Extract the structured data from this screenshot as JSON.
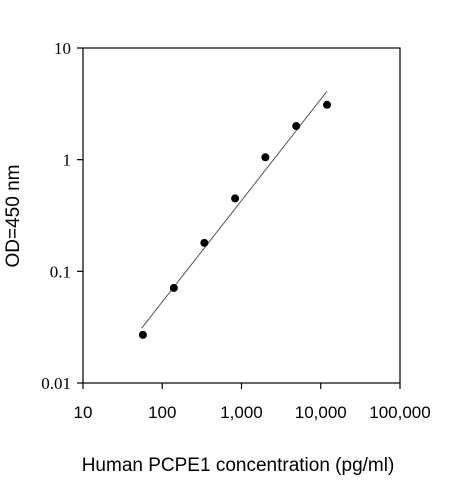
{
  "chart_data": {
    "type": "scatter",
    "title": "",
    "xlabel": "Human PCPE1 concentration (pg/ml)",
    "ylabel": "OD=450 nm",
    "xscale": "log",
    "yscale": "log",
    "xlim": [
      10,
      100000
    ],
    "ylim": [
      0.01,
      10
    ],
    "grid": false,
    "legend": "none",
    "x_ticks": [
      10,
      100,
      1000,
      10000,
      100000
    ],
    "x_tick_labels": [
      "10",
      "100",
      "1,000",
      "10,000",
      "100,000"
    ],
    "y_ticks": [
      0.01,
      0.1,
      1,
      10
    ],
    "y_tick_labels": [
      "0.01",
      "0.1",
      "1",
      "10"
    ],
    "series": [
      {
        "type": "scatter",
        "x": [
          57,
          140,
          340,
          830,
          2000,
          4900,
          12000
        ],
        "y": [
          0.027,
          0.071,
          0.18,
          0.45,
          1.05,
          2.0,
          3.1
        ]
      },
      {
        "type": "line",
        "x": [
          55,
          12000
        ],
        "y": [
          0.031,
          4.1
        ]
      }
    ],
    "colors": {
      "points": "#000000",
      "fit_line": "#555555",
      "axes": "#000000"
    }
  }
}
